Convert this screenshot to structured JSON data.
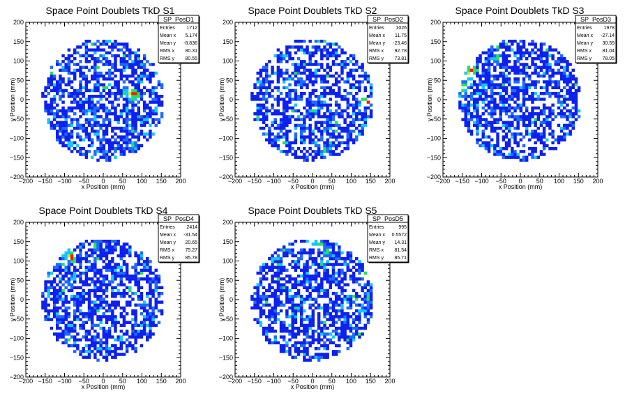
{
  "chart_data": [
    {
      "type": "heatmap",
      "title": "Space Point Doublets TkD S1",
      "xlabel": "x Position (mm)",
      "ylabel": "y Position (mm)",
      "xlim": [
        -200,
        200
      ],
      "ylim": [
        -200,
        200
      ],
      "xticks": [
        "−200",
        "−150",
        "−100",
        "−50",
        "0",
        "50",
        "100",
        "150",
        "200"
      ],
      "yticks": [
        "−200",
        "−150",
        "−100",
        "−50",
        "0",
        "50",
        "100",
        "150",
        "200"
      ],
      "stats": {
        "name": "SP_PosD1",
        "rows": [
          {
            "label": "Entries",
            "value": "1712"
          },
          {
            "label": "Mean x",
            "value": "5.174"
          },
          {
            "label": "Mean y",
            "value": "-8.836"
          },
          {
            "label": "RMS x",
            "value": "80.31"
          },
          {
            "label": "RMS y",
            "value": "80.55"
          }
        ]
      },
      "hotspots": [
        {
          "x": 80,
          "y": 15,
          "level": 5
        },
        {
          "x": 70,
          "y": 15,
          "level": 4
        },
        {
          "x": 75,
          "y": 5,
          "level": 3
        },
        {
          "x": -10,
          "y": 80,
          "level": 3
        },
        {
          "x": 75,
          "y": -120,
          "level": 3
        },
        {
          "x": -85,
          "y": -115,
          "level": 2
        },
        {
          "x": 110,
          "y": -90,
          "level": 2
        }
      ]
    },
    {
      "type": "heatmap",
      "title": "Space Point Doublets TkD S2",
      "xlabel": "x Position (mm)",
      "ylabel": "y Position (mm)",
      "xlim": [
        -200,
        200
      ],
      "ylim": [
        -200,
        200
      ],
      "xticks": [
        "−200",
        "−150",
        "−100",
        "−50",
        "0",
        "50",
        "100",
        "150",
        "200"
      ],
      "yticks": [
        "−200",
        "−150",
        "−100",
        "−50",
        "0",
        "50",
        "100",
        "150",
        "200"
      ],
      "stats": {
        "name": "SP_PosD2",
        "rows": [
          {
            "label": "Entries",
            "value": "1026"
          },
          {
            "label": "Mean x",
            "value": "11.75"
          },
          {
            "label": "Mean y",
            "value": "-23.46"
          },
          {
            "label": "RMS x",
            "value": "92.78"
          },
          {
            "label": "RMS y",
            "value": "73.81"
          }
        ]
      },
      "hotspots": [
        {
          "x": 140,
          "y": -5,
          "level": 5
        },
        {
          "x": 130,
          "y": 0,
          "level": 3
        },
        {
          "x": 30,
          "y": -130,
          "level": 3
        },
        {
          "x": -90,
          "y": 20,
          "level": 2
        },
        {
          "x": 60,
          "y": -110,
          "level": 2
        }
      ]
    },
    {
      "type": "heatmap",
      "title": "Space Point Doublets TkD S3",
      "xlabel": "x Position (mm)",
      "ylabel": "y Position (mm)",
      "xlim": [
        -200,
        200
      ],
      "ylim": [
        -200,
        200
      ],
      "xticks": [
        "−200",
        "−150",
        "−100",
        "−50",
        "0",
        "50",
        "100",
        "150",
        "200"
      ],
      "yticks": [
        "−200",
        "−150",
        "−100",
        "−50",
        "0",
        "50",
        "100",
        "150",
        "200"
      ],
      "stats": {
        "name": "SP_PosD3",
        "rows": [
          {
            "label": "Entries",
            "value": "1978"
          },
          {
            "label": "Mean x",
            "value": "-27.14"
          },
          {
            "label": "Mean y",
            "value": "30.59"
          },
          {
            "label": "RMS x",
            "value": "81.04"
          },
          {
            "label": "RMS y",
            "value": "78.05"
          }
        ]
      },
      "hotspots": [
        {
          "x": -125,
          "y": 75,
          "level": 5
        },
        {
          "x": -130,
          "y": 65,
          "level": 4
        },
        {
          "x": -150,
          "y": 20,
          "level": 3
        },
        {
          "x": -140,
          "y": 40,
          "level": 3
        },
        {
          "x": -60,
          "y": 110,
          "level": 3
        },
        {
          "x": -150,
          "y": -10,
          "level": 2
        },
        {
          "x": -120,
          "y": 100,
          "level": 2
        }
      ]
    },
    {
      "type": "heatmap",
      "title": "Space Point Doublets TkD S4",
      "xlabel": "x Position (mm)",
      "ylabel": "y Position (mm)",
      "xlim": [
        -200,
        200
      ],
      "ylim": [
        -200,
        200
      ],
      "xticks": [
        "−200",
        "−150",
        "−100",
        "−50",
        "0",
        "50",
        "100",
        "150",
        "200"
      ],
      "yticks": [
        "−200",
        "−150",
        "−100",
        "−50",
        "0",
        "50",
        "100",
        "150",
        "200"
      ],
      "stats": {
        "name": "SP_PosD4",
        "rows": [
          {
            "label": "Entries",
            "value": "2414"
          },
          {
            "label": "Mean x",
            "value": "-31.54"
          },
          {
            "label": "Mean y",
            "value": "20.65"
          },
          {
            "label": "RMS x",
            "value": "75.27"
          },
          {
            "label": "RMS y",
            "value": "85.78"
          }
        ]
      },
      "hotspots": [
        {
          "x": -80,
          "y": 110,
          "level": 5
        },
        {
          "x": -90,
          "y": 115,
          "level": 4
        },
        {
          "x": -20,
          "y": 140,
          "level": 3
        },
        {
          "x": -100,
          "y": 95,
          "level": 3
        },
        {
          "x": -90,
          "y": -100,
          "level": 3
        },
        {
          "x": -140,
          "y": 20,
          "level": 2
        },
        {
          "x": -130,
          "y": 60,
          "level": 2
        }
      ]
    },
    {
      "type": "heatmap",
      "title": "Space Point Doublets TkD S5",
      "xlabel": "x Position (mm)",
      "ylabel": "y Position (mm)",
      "xlim": [
        -200,
        200
      ],
      "ylim": [
        -200,
        200
      ],
      "xticks": [
        "−200",
        "−150",
        "−100",
        "−50",
        "0",
        "50",
        "100",
        "150",
        "200"
      ],
      "yticks": [
        "−200",
        "−150",
        "−100",
        "−50",
        "0",
        "50",
        "100",
        "150",
        "200"
      ],
      "stats": {
        "name": "SP_PosD5",
        "rows": [
          {
            "label": "Entries",
            "value": "995"
          },
          {
            "label": "Mean x",
            "value": "0.5572"
          },
          {
            "label": "Mean y",
            "value": "14.31"
          },
          {
            "label": "RMS x",
            "value": "81.54"
          },
          {
            "label": "RMS y",
            "value": "85.71"
          }
        ]
      },
      "hotspots": [
        {
          "x": 145,
          "y": 75,
          "level": 5
        },
        {
          "x": 0,
          "y": 150,
          "level": 4
        },
        {
          "x": 20,
          "y": 140,
          "level": 3
        },
        {
          "x": 40,
          "y": 125,
          "level": 3
        },
        {
          "x": -30,
          "y": 140,
          "level": 2
        }
      ]
    }
  ]
}
